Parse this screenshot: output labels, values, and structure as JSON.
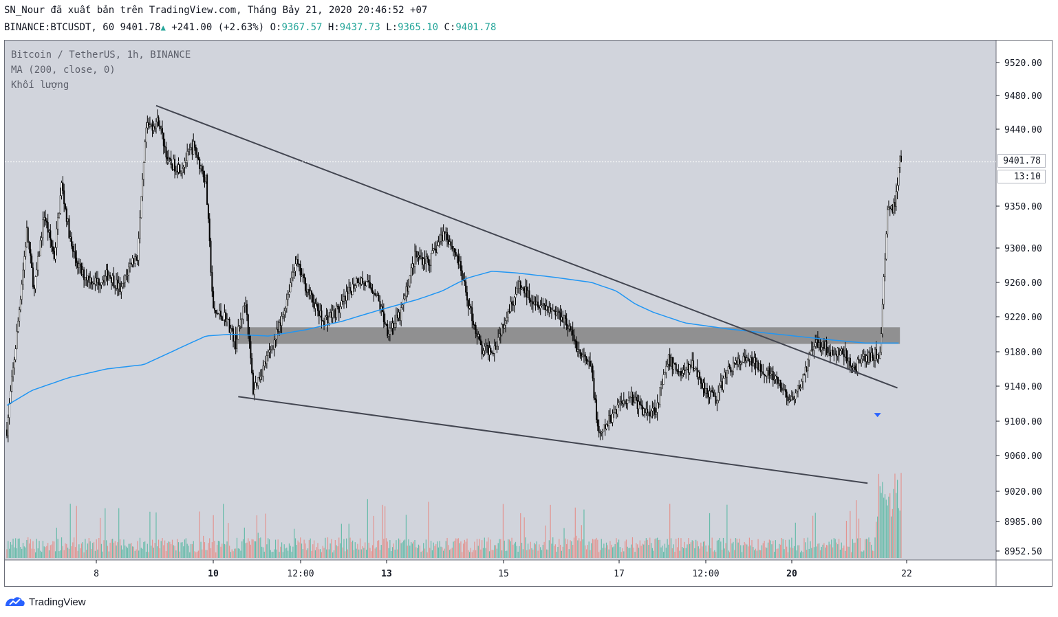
{
  "header": {
    "published_line": "SN_Nour đã xuất bản trên TradingView.com, Tháng Bảy 21, 2020 20:46:52 +07",
    "symbol": "BINANCE:BTCUSDT, 60",
    "last": "9401.78",
    "change": "+241.00 (+2.63%)",
    "o_label": "O:",
    "o_value": "9367.57",
    "h_label": "H:",
    "h_value": "9437.73",
    "l_label": "L:",
    "l_value": "9365.10",
    "c_label": "C:",
    "c_value": "9401.78"
  },
  "legend": {
    "line1": "Bitcoin / TetherUS, 1h, BINANCE",
    "line2": "MA (200, close, 0)",
    "line3": "Khối lượng"
  },
  "footer": {
    "brand": "TradingView"
  },
  "colors": {
    "background": "#d1d4dc",
    "up": "#ffffff",
    "down": "#000000",
    "ma": "#2196f3",
    "vol_up": "#66bba9",
    "vol_down": "#e3938f",
    "zone": "#8c8c8c",
    "trendline": "#434651"
  },
  "chart_data": {
    "type": "candlestick",
    "symbol": "BTCUSDT",
    "timeframe": "1h",
    "x_ticks": [
      "8",
      "10",
      "12:00",
      "13",
      "15",
      "17",
      "12:00",
      "20",
      "22"
    ],
    "y_ticks": [
      9520.0,
      9480.0,
      9440.0,
      9350.0,
      9300.0,
      9260.0,
      9220.0,
      9180.0,
      9140.0,
      9100.0,
      9060.0,
      9020.0,
      8985.0,
      8952.5
    ],
    "last_price": "9401.78",
    "countdown": "13:10",
    "price_path": [
      [
        0,
        9090
      ],
      [
        8,
        9200
      ],
      [
        16,
        9320
      ],
      [
        22,
        9250
      ],
      [
        30,
        9340
      ],
      [
        38,
        9290
      ],
      [
        44,
        9375
      ],
      [
        52,
        9300
      ],
      [
        60,
        9270
      ],
      [
        72,
        9260
      ],
      [
        82,
        9270
      ],
      [
        92,
        9250
      ],
      [
        100,
        9285
      ],
      [
        105,
        9290
      ],
      [
        112,
        9440
      ],
      [
        122,
        9450
      ],
      [
        130,
        9400
      ],
      [
        140,
        9395
      ],
      [
        150,
        9420
      ],
      [
        160,
        9380
      ],
      [
        166,
        9225
      ],
      [
        176,
        9220
      ],
      [
        184,
        9190
      ],
      [
        192,
        9240
      ],
      [
        198,
        9135
      ],
      [
        210,
        9175
      ],
      [
        220,
        9210
      ],
      [
        232,
        9285
      ],
      [
        242,
        9250
      ],
      [
        254,
        9215
      ],
      [
        268,
        9230
      ],
      [
        282,
        9265
      ],
      [
        296,
        9250
      ],
      [
        306,
        9205
      ],
      [
        316,
        9220
      ],
      [
        328,
        9290
      ],
      [
        340,
        9285
      ],
      [
        352,
        9320
      ],
      [
        362,
        9290
      ],
      [
        372,
        9230
      ],
      [
        382,
        9180
      ],
      [
        392,
        9185
      ],
      [
        402,
        9225
      ],
      [
        412,
        9255
      ],
      [
        424,
        9240
      ],
      [
        436,
        9230
      ],
      [
        448,
        9220
      ],
      [
        460,
        9180
      ],
      [
        470,
        9160
      ],
      [
        476,
        9080
      ],
      [
        482,
        9095
      ],
      [
        492,
        9120
      ],
      [
        502,
        9130
      ],
      [
        512,
        9110
      ],
      [
        522,
        9115
      ],
      [
        532,
        9170
      ],
      [
        542,
        9155
      ],
      [
        552,
        9165
      ],
      [
        560,
        9140
      ],
      [
        570,
        9125
      ],
      [
        580,
        9160
      ],
      [
        592,
        9170
      ],
      [
        604,
        9165
      ],
      [
        616,
        9150
      ],
      [
        624,
        9135
      ],
      [
        632,
        9120
      ],
      [
        640,
        9150
      ],
      [
        648,
        9185
      ],
      [
        656,
        9190
      ],
      [
        664,
        9175
      ],
      [
        672,
        9180
      ],
      [
        680,
        9160
      ],
      [
        688,
        9170
      ],
      [
        696,
        9175
      ],
      [
        702,
        9180
      ],
      [
        708,
        9340
      ],
      [
        714,
        9350
      ],
      [
        718,
        9402
      ]
    ],
    "ma200_path": [
      [
        0,
        9118
      ],
      [
        20,
        9135
      ],
      [
        50,
        9150
      ],
      [
        80,
        9160
      ],
      [
        110,
        9165
      ],
      [
        140,
        9185
      ],
      [
        160,
        9198
      ],
      [
        180,
        9200
      ],
      [
        210,
        9198
      ],
      [
        240,
        9205
      ],
      [
        270,
        9215
      ],
      [
        300,
        9228
      ],
      [
        330,
        9240
      ],
      [
        350,
        9250
      ],
      [
        370,
        9265
      ],
      [
        390,
        9273
      ],
      [
        410,
        9271
      ],
      [
        440,
        9266
      ],
      [
        470,
        9260
      ],
      [
        490,
        9250
      ],
      [
        505,
        9235
      ],
      [
        520,
        9225
      ],
      [
        545,
        9213
      ],
      [
        580,
        9206
      ],
      [
        620,
        9200
      ],
      [
        660,
        9194
      ],
      [
        690,
        9190
      ],
      [
        718,
        9190
      ]
    ],
    "zone": {
      "from": 9189,
      "to": 9208
    },
    "upper_trendline": [
      [
        120,
        9468
      ],
      [
        716,
        9138
      ]
    ],
    "lower_trendline": [
      [
        186,
        9128
      ],
      [
        692,
        9029
      ]
    ],
    "arrow_marker": {
      "bar": 700,
      "price": 9107,
      "direction": "down"
    }
  }
}
